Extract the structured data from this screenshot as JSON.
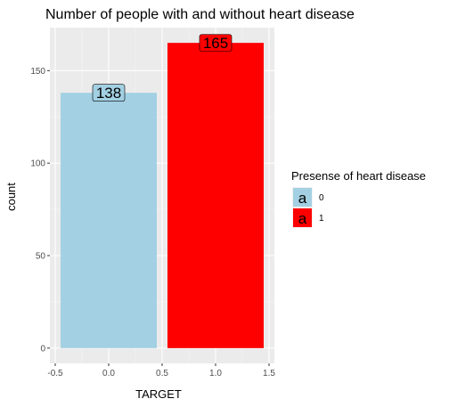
{
  "chart_data": {
    "type": "bar",
    "title": "Number of people with and without heart disease",
    "xlabel": "TARGET",
    "ylabel": "count",
    "x": [
      0,
      1
    ],
    "values": [
      138,
      165
    ],
    "data_labels": [
      "138",
      "165"
    ],
    "bar_width": 0.9,
    "xlim": [
      -0.55,
      1.55
    ],
    "ylim": [
      -8.25,
      173.25
    ],
    "x_ticks": [
      -0.5,
      0.0,
      0.5,
      1.0,
      1.5
    ],
    "x_tick_labels": [
      "-0.5",
      "0.0",
      "0.5",
      "1.0",
      "1.5"
    ],
    "y_ticks": [
      0,
      50,
      100,
      150
    ],
    "y_tick_labels": [
      "0",
      "50",
      "100",
      "150"
    ],
    "grid": true,
    "panel_background": "#ebebeb",
    "colors": [
      "#a3d0e3",
      "#ff0000"
    ],
    "legend": {
      "title": "Presense of heart disease",
      "placement": "right",
      "key_glyph": "a",
      "entries": [
        {
          "label": "0",
          "color": "#a3d0e3"
        },
        {
          "label": "1",
          "color": "#ff0000"
        }
      ]
    }
  }
}
